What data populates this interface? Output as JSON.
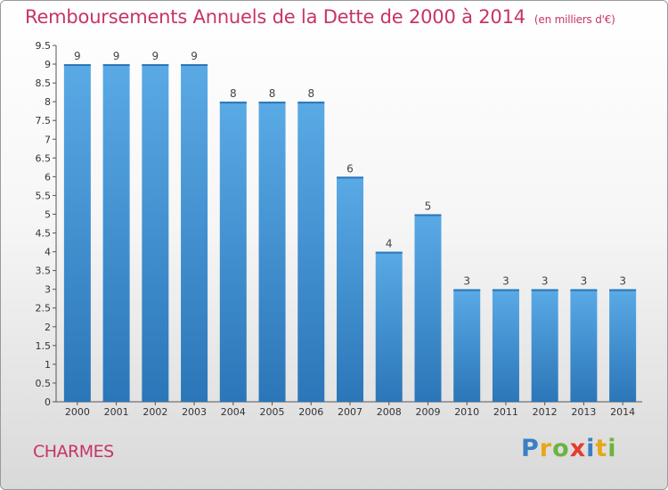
{
  "title": "Remboursements Annuels de la Dette de 2000 à 2014",
  "subtitle": "(en milliers d'€)",
  "town": "CHARMES",
  "logo": {
    "text": "Proxiti",
    "colors": [
      "#3a7fc4",
      "#e6a817",
      "#6cb33f",
      "#e63b2e",
      "#3a7fc4",
      "#e6a817",
      "#6cb33f"
    ]
  },
  "colors": {
    "title": "#c7336a",
    "bar_top": "#5aaae6",
    "bar_bottom": "#2b76b8"
  },
  "chart_data": {
    "type": "bar",
    "title": "Remboursements Annuels de la Dette de 2000 à 2014",
    "xlabel": "",
    "ylabel": "",
    "categories": [
      "2000",
      "2001",
      "2002",
      "2003",
      "2004",
      "2005",
      "2006",
      "2007",
      "2008",
      "2009",
      "2010",
      "2011",
      "2012",
      "2013",
      "2014"
    ],
    "values": [
      9,
      9,
      9,
      9,
      8,
      8,
      8,
      6,
      4,
      5,
      3,
      3,
      3,
      3,
      3
    ],
    "ylim": [
      0,
      9.5
    ],
    "yticks": [
      "0",
      "0.5",
      "1",
      "1.5",
      "2",
      "2.5",
      "3",
      "3.5",
      "4",
      "4.5",
      "5",
      "5.5",
      "6",
      "6.5",
      "7",
      "7.5",
      "8",
      "8.5",
      "9",
      "9.5"
    ],
    "grid": false,
    "legend": "none"
  }
}
